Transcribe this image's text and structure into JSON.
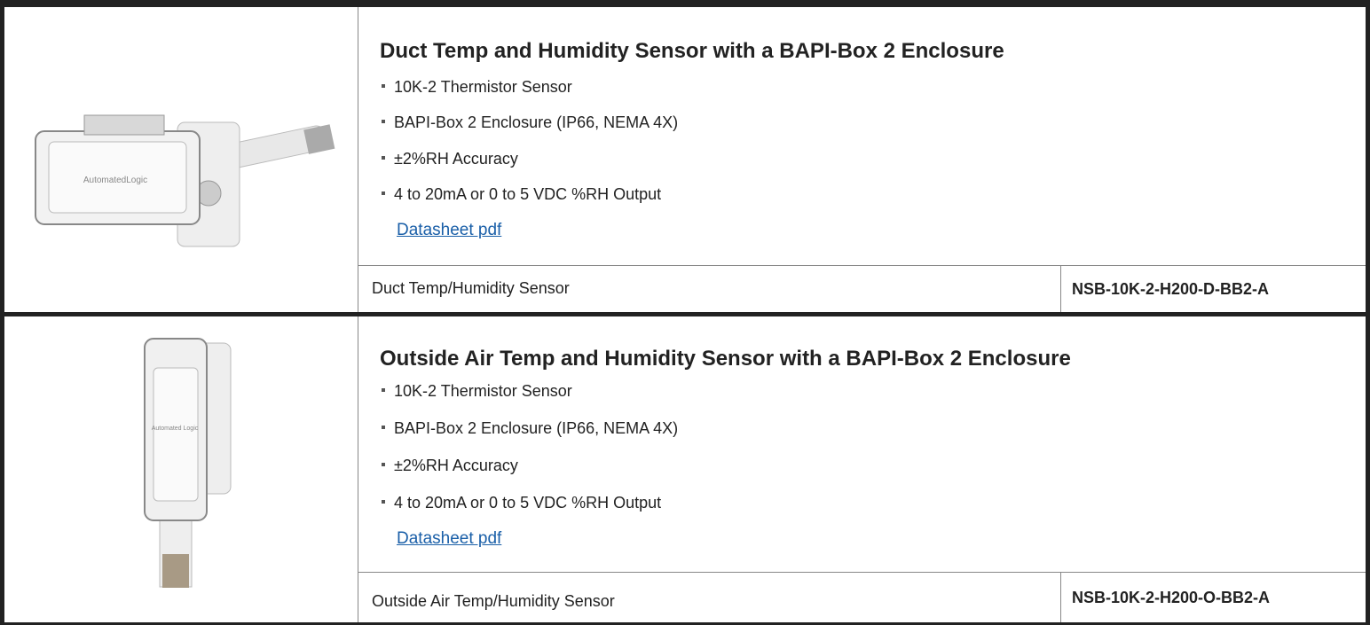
{
  "products": [
    {
      "image_label": "AutomatedLogic",
      "title": "Duct Temp and Humidity Sensor with a BAPI-Box 2 Enclosure",
      "features": [
        "10K-2 Thermistor Sensor",
        "BAPI-Box 2 Enclosure (IP66, NEMA 4X)",
        "±2%RH Accuracy",
        "4 to 20mA or 0 to 5 VDC %RH Output"
      ],
      "link": "Datasheet pdf",
      "description": "Duct Temp/Humidity Sensor",
      "part_number": "NSB-10K-2-H200-D-BB2-A"
    },
    {
      "image_label": "Automated Logic",
      "title": "Outside Air Temp and Humidity Sensor with a BAPI-Box 2 Enclosure",
      "features": [
        "10K-2 Thermistor Sensor",
        "BAPI-Box 2 Enclosure (IP66, NEMA 4X)",
        "±2%RH Accuracy",
        "4 to 20mA or 0 to 5 VDC %RH Output"
      ],
      "link": "Datasheet pdf",
      "description": "Outside Air Temp/Humidity Sensor",
      "part_number": "NSB-10K-2-H200-O-BB2-A"
    }
  ]
}
